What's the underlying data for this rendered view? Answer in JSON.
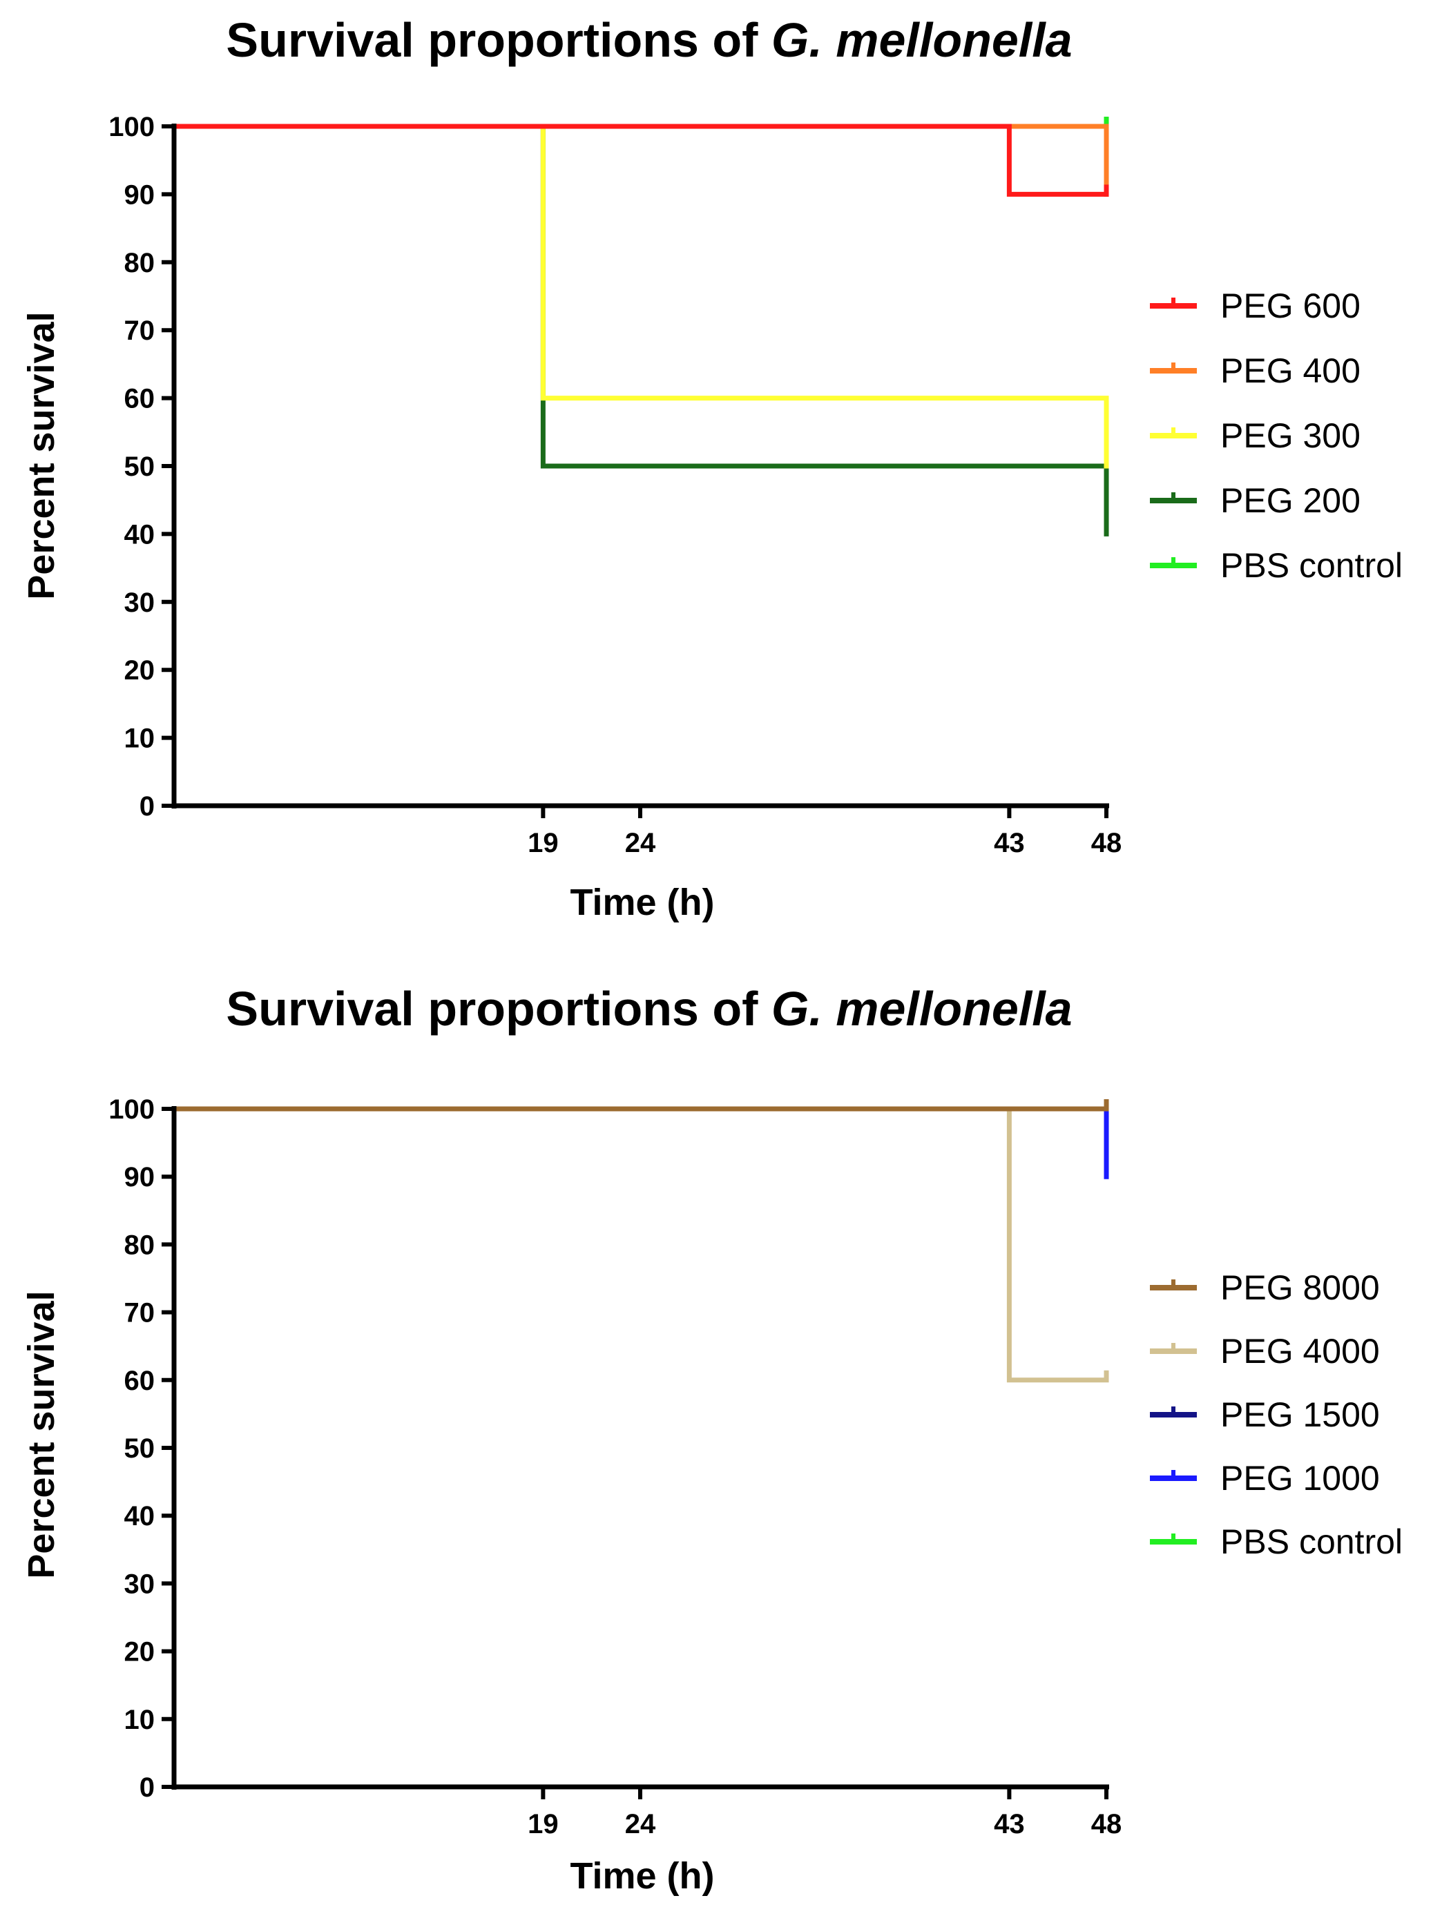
{
  "chart_data": [
    {
      "type": "line",
      "subtype": "survival-step",
      "title": "Survival proportions of ",
      "title_species": "G. mellonella",
      "xlabel": "Time (h)",
      "ylabel": "Percent survival",
      "xlim": [
        0,
        48
      ],
      "ylim": [
        0,
        100
      ],
      "xticks": [
        19,
        24,
        43,
        48
      ],
      "yticks": [
        0,
        10,
        20,
        30,
        40,
        50,
        60,
        70,
        80,
        90,
        100
      ],
      "legend_position": "right",
      "series": [
        {
          "name": "PEG 600",
          "color": "#ff1a1a",
          "x": [
            0,
            43,
            48
          ],
          "y": [
            100,
            90,
            90
          ]
        },
        {
          "name": "PEG 400",
          "color": "#ff7f27",
          "x": [
            0,
            48
          ],
          "y": [
            100,
            90
          ]
        },
        {
          "name": "PEG 300",
          "color": "#ffff33",
          "x": [
            0,
            19,
            48
          ],
          "y": [
            100,
            60,
            50
          ]
        },
        {
          "name": "PEG 200",
          "color": "#1a6b1a",
          "x": [
            0,
            19,
            48
          ],
          "y": [
            100,
            50,
            40
          ]
        },
        {
          "name": "PBS control",
          "color": "#22ee22",
          "x": [
            0,
            48
          ],
          "y": [
            100,
            100
          ]
        }
      ]
    },
    {
      "type": "line",
      "subtype": "survival-step",
      "title": "Survival proportions of ",
      "title_species": "G. mellonella",
      "xlabel": "Time (h)",
      "ylabel": "Percent survival",
      "xlim": [
        0,
        48
      ],
      "ylim": [
        0,
        100
      ],
      "xticks": [
        19,
        24,
        43,
        48
      ],
      "yticks": [
        0,
        10,
        20,
        30,
        40,
        50,
        60,
        70,
        80,
        90,
        100
      ],
      "legend_position": "right",
      "series": [
        {
          "name": "PEG 8000",
          "color": "#9c6b30",
          "x": [
            0,
            48
          ],
          "y": [
            100,
            100
          ]
        },
        {
          "name": "PEG 4000",
          "color": "#d2c191",
          "x": [
            0,
            43,
            48
          ],
          "y": [
            100,
            60,
            60
          ]
        },
        {
          "name": "PEG 1500",
          "color": "#141487",
          "x": [
            0,
            43,
            48
          ],
          "y": [
            100,
            100,
            100
          ]
        },
        {
          "name": "PEG 1000",
          "color": "#1a1aff",
          "x": [
            0,
            48
          ],
          "y": [
            100,
            90
          ]
        },
        {
          "name": "PBS control",
          "color": "#22ee22",
          "x": [
            0,
            48
          ],
          "y": [
            100,
            100
          ]
        }
      ]
    }
  ]
}
